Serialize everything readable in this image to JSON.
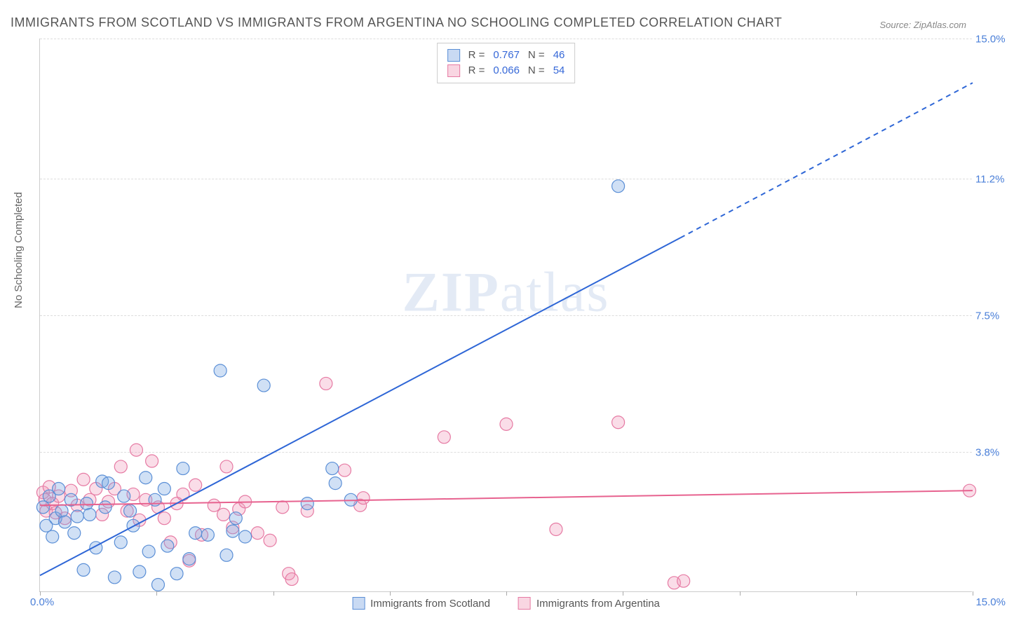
{
  "title": "IMMIGRANTS FROM SCOTLAND VS IMMIGRANTS FROM ARGENTINA NO SCHOOLING COMPLETED CORRELATION CHART",
  "source": "Source: ZipAtlas.com",
  "ylabel": "No Schooling Completed",
  "watermark_a": "ZIP",
  "watermark_b": "atlas",
  "chart": {
    "type": "scatter",
    "xlim": [
      0,
      15
    ],
    "ylim": [
      0,
      15
    ],
    "x_origin_label": "0.0%",
    "x_max_label": "15.0%",
    "y_gridlines": [
      3.8,
      7.5,
      11.2,
      15.0
    ],
    "y_grid_labels": [
      "3.8%",
      "7.5%",
      "11.2%",
      "15.0%"
    ],
    "x_ticks": [
      0.0,
      1.875,
      3.75,
      5.625,
      7.5,
      9.375,
      11.25,
      13.125,
      15.0
    ],
    "colors": {
      "blue_fill": "rgba(120,165,225,0.35)",
      "blue_stroke": "#5b8fd6",
      "pink_fill": "rgba(240,150,185,0.32)",
      "pink_stroke": "#e67aa3",
      "line_blue": "#2e66d6",
      "line_pink": "#e7628f",
      "grid": "#dddddd",
      "axis": "#cccccc",
      "text": "#555555",
      "tick_text": "#4a7fd8"
    },
    "legend_top": [
      {
        "swatch": "blue",
        "r_label": "R =",
        "r": "0.767",
        "n_label": "N =",
        "n": "46"
      },
      {
        "swatch": "pink",
        "r_label": "R =",
        "r": "0.066",
        "n_label": "N =",
        "n": "54"
      }
    ],
    "legend_bottom": [
      {
        "swatch": "blue",
        "label": "Immigrants from Scotland"
      },
      {
        "swatch": "pink",
        "label": "Immigrants from Argentina"
      }
    ],
    "marker_radius": 9,
    "series_blue": [
      [
        0.05,
        2.3
      ],
      [
        0.1,
        1.8
      ],
      [
        0.15,
        2.6
      ],
      [
        0.2,
        1.5
      ],
      [
        0.25,
        2.0
      ],
      [
        0.3,
        2.8
      ],
      [
        0.35,
        2.2
      ],
      [
        0.4,
        1.9
      ],
      [
        0.5,
        2.5
      ],
      [
        0.55,
        1.6
      ],
      [
        0.6,
        2.05
      ],
      [
        0.7,
        0.6
      ],
      [
        0.75,
        2.4
      ],
      [
        0.8,
        2.1
      ],
      [
        0.9,
        1.2
      ],
      [
        1.0,
        3.0
      ],
      [
        1.05,
        2.3
      ],
      [
        1.1,
        2.95
      ],
      [
        1.2,
        0.4
      ],
      [
        1.3,
        1.35
      ],
      [
        1.35,
        2.6
      ],
      [
        1.45,
        2.2
      ],
      [
        1.5,
        1.8
      ],
      [
        1.6,
        0.55
      ],
      [
        1.7,
        3.1
      ],
      [
        1.75,
        1.1
      ],
      [
        1.85,
        2.5
      ],
      [
        1.9,
        0.2
      ],
      [
        2.0,
        2.8
      ],
      [
        2.05,
        1.25
      ],
      [
        2.2,
        0.5
      ],
      [
        2.3,
        3.35
      ],
      [
        2.4,
        0.9
      ],
      [
        2.5,
        1.6
      ],
      [
        2.7,
        1.55
      ],
      [
        2.9,
        6.0
      ],
      [
        3.0,
        1.0
      ],
      [
        3.1,
        1.65
      ],
      [
        3.15,
        2.0
      ],
      [
        3.3,
        1.5
      ],
      [
        3.6,
        5.6
      ],
      [
        4.3,
        2.4
      ],
      [
        4.7,
        3.35
      ],
      [
        4.75,
        2.95
      ],
      [
        5.0,
        2.5
      ],
      [
        9.3,
        11.0
      ]
    ],
    "series_pink": [
      [
        0.05,
        2.7
      ],
      [
        0.08,
        2.5
      ],
      [
        0.1,
        2.2
      ],
      [
        0.15,
        2.85
      ],
      [
        0.2,
        2.4
      ],
      [
        0.25,
        2.15
      ],
      [
        0.3,
        2.6
      ],
      [
        0.4,
        2.0
      ],
      [
        0.5,
        2.75
      ],
      [
        0.6,
        2.35
      ],
      [
        0.7,
        3.05
      ],
      [
        0.8,
        2.5
      ],
      [
        0.9,
        2.8
      ],
      [
        1.0,
        2.1
      ],
      [
        1.1,
        2.45
      ],
      [
        1.2,
        2.8
      ],
      [
        1.3,
        3.4
      ],
      [
        1.4,
        2.2
      ],
      [
        1.5,
        2.65
      ],
      [
        1.55,
        3.85
      ],
      [
        1.6,
        1.95
      ],
      [
        1.7,
        2.5
      ],
      [
        1.8,
        3.55
      ],
      [
        1.9,
        2.3
      ],
      [
        2.0,
        2.0
      ],
      [
        2.1,
        1.35
      ],
      [
        2.2,
        2.4
      ],
      [
        2.3,
        2.65
      ],
      [
        2.4,
        0.85
      ],
      [
        2.5,
        2.9
      ],
      [
        2.6,
        1.55
      ],
      [
        2.8,
        2.35
      ],
      [
        2.95,
        2.1
      ],
      [
        3.0,
        3.4
      ],
      [
        3.1,
        1.75
      ],
      [
        3.2,
        2.25
      ],
      [
        3.3,
        2.45
      ],
      [
        3.5,
        1.6
      ],
      [
        3.7,
        1.4
      ],
      [
        3.9,
        2.3
      ],
      [
        4.0,
        0.5
      ],
      [
        4.05,
        0.35
      ],
      [
        4.3,
        2.2
      ],
      [
        4.6,
        5.65
      ],
      [
        4.9,
        3.3
      ],
      [
        5.15,
        2.35
      ],
      [
        5.2,
        2.55
      ],
      [
        6.5,
        4.2
      ],
      [
        7.5,
        4.55
      ],
      [
        8.3,
        1.7
      ],
      [
        9.3,
        4.6
      ],
      [
        10.2,
        0.25
      ],
      [
        10.35,
        0.3
      ],
      [
        14.95,
        2.75
      ]
    ],
    "line_blue": {
      "x1": 0,
      "y1": 0.45,
      "x2_solid": 10.3,
      "y2_solid": 9.6,
      "x2": 15,
      "y2": 13.8
    },
    "line_pink": {
      "x1": 0,
      "y1": 2.35,
      "x2": 15,
      "y2": 2.75
    }
  }
}
